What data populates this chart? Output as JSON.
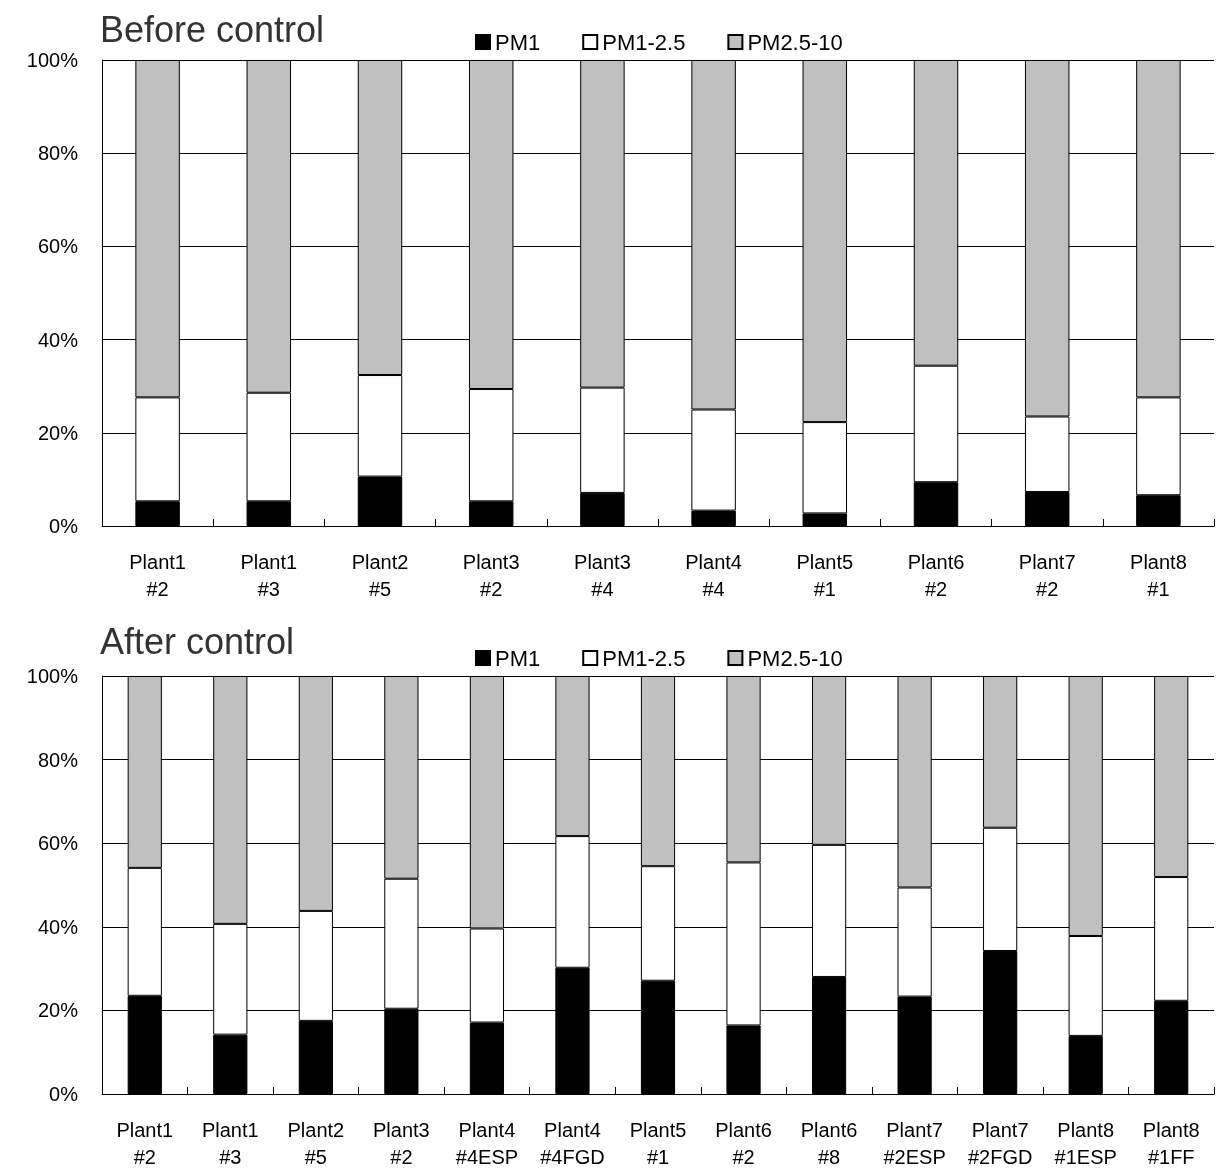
{
  "chart_data": [
    {
      "type": "bar",
      "title": "Before control",
      "stacked": true,
      "legend": "top",
      "grid": "y",
      "categories": [
        "Plant1\n#2",
        "Plant1\n#3",
        "Plant2\n#5",
        "Plant3\n#2",
        "Plant3\n#4",
        "Plant4\n#4",
        "Plant5\n#1",
        "Plant6\n#2",
        "Plant7\n#2",
        "Plant8\n#1"
      ],
      "series": [
        {
          "name": "PM1",
          "color": "#000000",
          "values": [
            5.3,
            5.3,
            10.6,
            5.3,
            7.1,
            3.3,
            2.7,
            9.4,
            7.3,
            6.6
          ]
        },
        {
          "name": "PM1-2.5",
          "color": "#ffffff",
          "values": [
            22.3,
            23.3,
            21.8,
            24.1,
            22.6,
            21.7,
            19.6,
            25.0,
            16.2,
            21.0
          ]
        },
        {
          "name": "PM2.5-10",
          "color": "#c0c0c0",
          "values": [
            72.4,
            71.4,
            67.6,
            70.6,
            70.3,
            75.0,
            77.7,
            65.6,
            76.5,
            72.4
          ]
        }
      ],
      "ylim": [
        0,
        100
      ],
      "yticks": [
        {
          "value": 0,
          "label": "0%"
        },
        {
          "value": 20,
          "label": "20%"
        },
        {
          "value": 40,
          "label": "40%"
        },
        {
          "value": 60,
          "label": "60%"
        },
        {
          "value": 80,
          "label": "80%"
        },
        {
          "value": 100,
          "label": "100%"
        }
      ]
    },
    {
      "type": "bar",
      "title": "After control",
      "stacked": true,
      "legend": "top",
      "grid": "y",
      "categories": [
        "Plant1\n#2",
        "Plant1\n#3",
        "Plant2\n#5",
        "Plant3\n#2",
        "Plant4\n#4ESP",
        "Plant4\n#4FGD",
        "Plant5\n#1",
        "Plant6\n#2",
        "Plant6\n#8",
        "Plant7\n#2ESP",
        "Plant7\n#2FGD",
        "Plant8\n#1ESP",
        "Plant8\n#1FF"
      ],
      "series": [
        {
          "name": "PM1",
          "color": "#000000",
          "values": [
            23.5,
            14.2,
            17.5,
            20.4,
            17.1,
            30.2,
            27.1,
            16.4,
            28.0,
            23.3,
            34.2,
            13.9,
            22.3
          ]
        },
        {
          "name": "PM1-2.5",
          "color": "#ffffff",
          "values": [
            30.6,
            26.5,
            26.3,
            31.1,
            22.5,
            31.5,
            27.4,
            39.0,
            31.6,
            26.1,
            29.5,
            23.9,
            29.6
          ]
        },
        {
          "name": "PM2.5-10",
          "color": "#c0c0c0",
          "values": [
            45.9,
            59.3,
            56.2,
            48.5,
            60.4,
            38.3,
            45.5,
            44.6,
            40.4,
            50.6,
            36.3,
            62.2,
            48.1
          ]
        }
      ],
      "ylim": [
        0,
        100
      ],
      "yticks": [
        {
          "value": 0,
          "label": "0%"
        },
        {
          "value": 20,
          "label": "20%"
        },
        {
          "value": 40,
          "label": "40%"
        },
        {
          "value": 60,
          "label": "60%"
        },
        {
          "value": 80,
          "label": "80%"
        },
        {
          "value": 100,
          "label": "100%"
        }
      ]
    }
  ]
}
